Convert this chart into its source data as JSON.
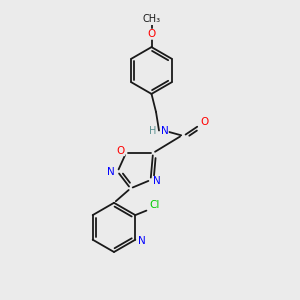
{
  "background_color": "#ebebeb",
  "bond_color": "#1a1a1a",
  "atom_colors": {
    "N": "#0000ff",
    "O": "#ff0000",
    "Cl": "#00cc00",
    "C": "#1a1a1a",
    "H": "#5a9090"
  },
  "figsize": [
    3.0,
    3.0
  ],
  "dpi": 100,
  "lw": 1.3,
  "fontsize": 7.5
}
